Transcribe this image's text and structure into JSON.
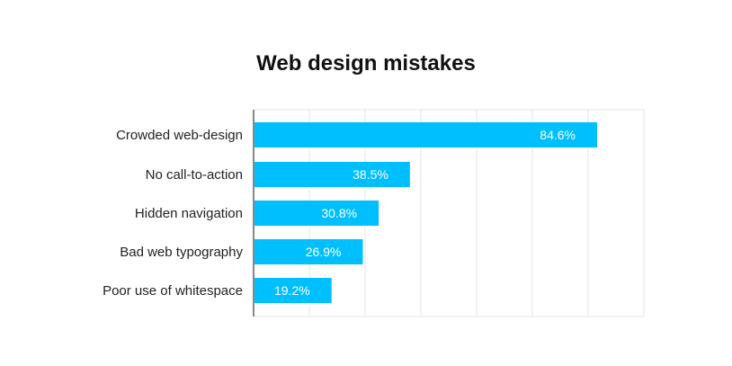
{
  "chart_data": {
    "type": "bar",
    "orientation": "horizontal",
    "title": "Web design mistakes",
    "xlabel": "",
    "ylabel": "",
    "categories": [
      "Crowded web-design",
      "No call-to-action",
      "Hidden navigation",
      "Bad web typography",
      "Poor use of whitespace"
    ],
    "values": [
      84.6,
      38.5,
      30.8,
      26.9,
      19.2
    ],
    "value_labels": [
      "84.6%",
      "38.5%",
      "30.8%",
      "26.9%",
      "19.2%"
    ],
    "xlim": [
      0,
      70
    ],
    "grid": true,
    "legend": "none",
    "colors": {
      "bar": "#00BFFF",
      "grid": "#e6e6e6",
      "axis": "#888888"
    }
  }
}
